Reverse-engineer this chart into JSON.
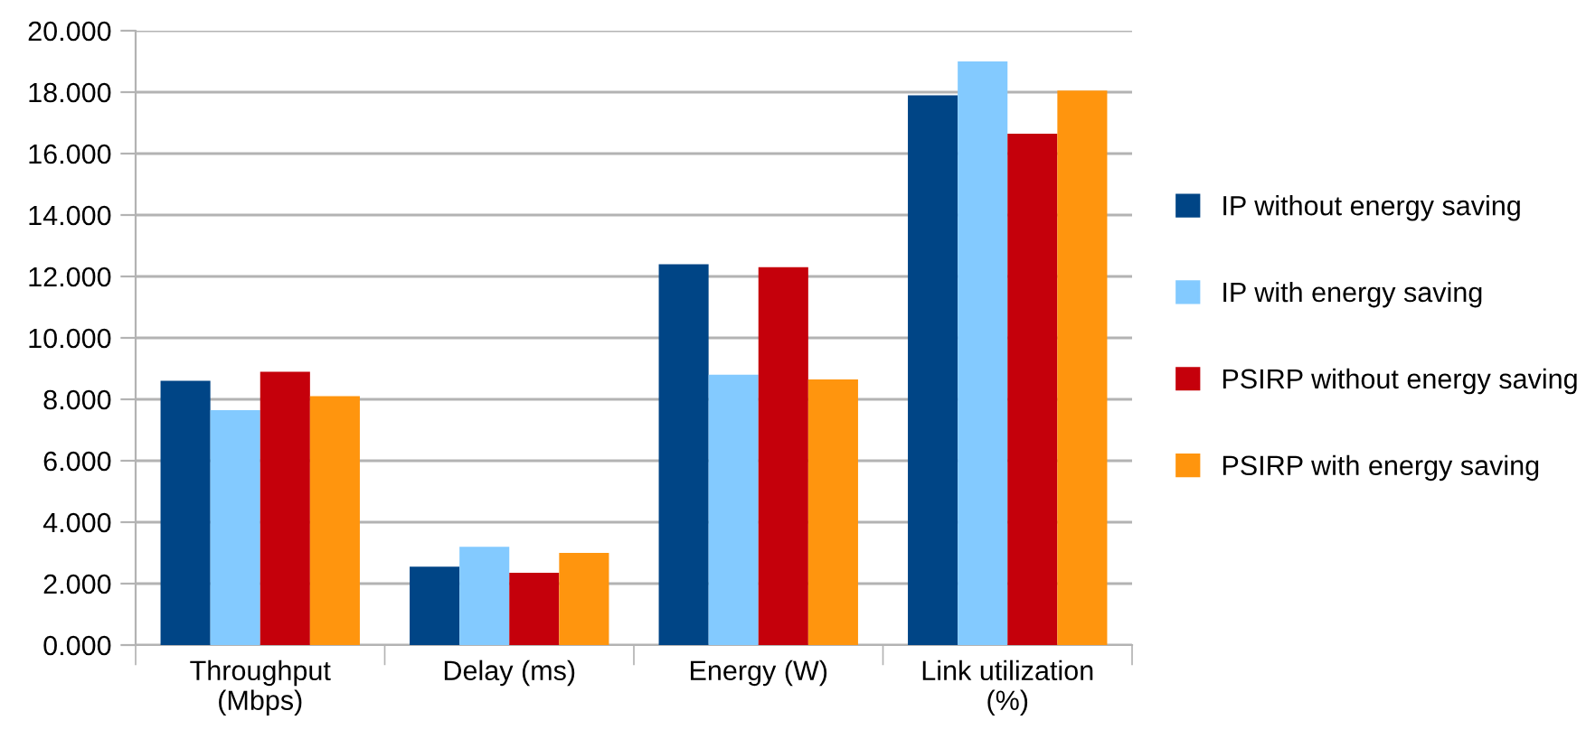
{
  "chart_data": {
    "type": "bar",
    "categories": [
      "Throughput\n(Mbps)",
      "Delay (ms)",
      "Energy (W)",
      "Link utilization\n(%)"
    ],
    "series": [
      {
        "name": "IP without energy saving",
        "color": "#004586",
        "values": [
          8.6,
          2.55,
          12.4,
          17.9
        ]
      },
      {
        "name": "IP with energy saving",
        "color": "#83caff",
        "values": [
          7.65,
          3.2,
          8.8,
          19.0
        ]
      },
      {
        "name": "PSIRP without energy saving",
        "color": "#c5000b",
        "values": [
          8.9,
          2.35,
          12.3,
          16.65
        ]
      },
      {
        "name": "PSIRP with energy saving",
        "color": "#ff950e",
        "values": [
          8.1,
          3.0,
          8.65,
          18.05
        ]
      }
    ],
    "ylim": [
      0,
      20
    ],
    "yticks": [
      {
        "value": 0,
        "label": "0.000"
      },
      {
        "value": 2,
        "label": "2.000"
      },
      {
        "value": 4,
        "label": "4.000"
      },
      {
        "value": 6,
        "label": "6.000"
      },
      {
        "value": 8,
        "label": "8.000"
      },
      {
        "value": 10,
        "label": "10.000"
      },
      {
        "value": 12,
        "label": "12.000"
      },
      {
        "value": 14,
        "label": "14.000"
      },
      {
        "value": 16,
        "label": "16.000"
      },
      {
        "value": 18,
        "label": "18.000"
      },
      {
        "value": 20,
        "label": "20.000"
      }
    ],
    "grid": "y",
    "legend": "right"
  }
}
